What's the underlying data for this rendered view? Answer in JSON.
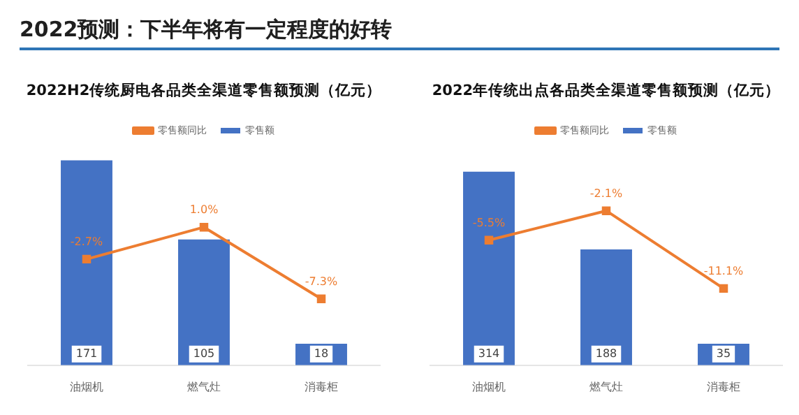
{
  "chart_data": [
    {
      "type": "other",
      "title": "2022预测：下半年将有一定程度的好转"
    },
    {
      "type": "bar",
      "title": "2022H2传统厨电各品类全渠道零售额预测（亿元）",
      "categories": [
        "油烟机",
        "燃气灶",
        "消毒柜"
      ],
      "legend": "top",
      "tick_labels": "x",
      "marker": "square",
      "series": [
        {
          "name": "零售额",
          "color": "#4472c4",
          "values": [
            171,
            105,
            18
          ],
          "value_labels": [
            "171",
            "105",
            "18"
          ]
        },
        {
          "name": "零售额同比",
          "type": "line",
          "axis": "y2",
          "color": "#ed7d31",
          "values": [
            -2.7,
            1.0,
            -7.3
          ],
          "value_labels": [
            "-2.7%",
            "1.0%",
            "-7.3%"
          ]
        }
      ]
    },
    {
      "type": "bar",
      "title": "2022年传统出点各品类全渠道零售额预测（亿元）",
      "categories": [
        "油烟机",
        "燃气灶",
        "消毒柜"
      ],
      "legend": "top",
      "tick_labels": "x",
      "marker": "square",
      "series": [
        {
          "name": "零售额",
          "color": "#4472c4",
          "values": [
            314,
            188,
            35
          ],
          "value_labels": [
            "314",
            "188",
            "35"
          ]
        },
        {
          "name": "零售额同比",
          "type": "line",
          "axis": "y2",
          "color": "#ed7d31",
          "values": [
            -5.5,
            -2.1,
            -11.1
          ],
          "value_labels": [
            "-5.5%",
            "-2.1%",
            "-11.1%"
          ]
        }
      ]
    }
  ]
}
